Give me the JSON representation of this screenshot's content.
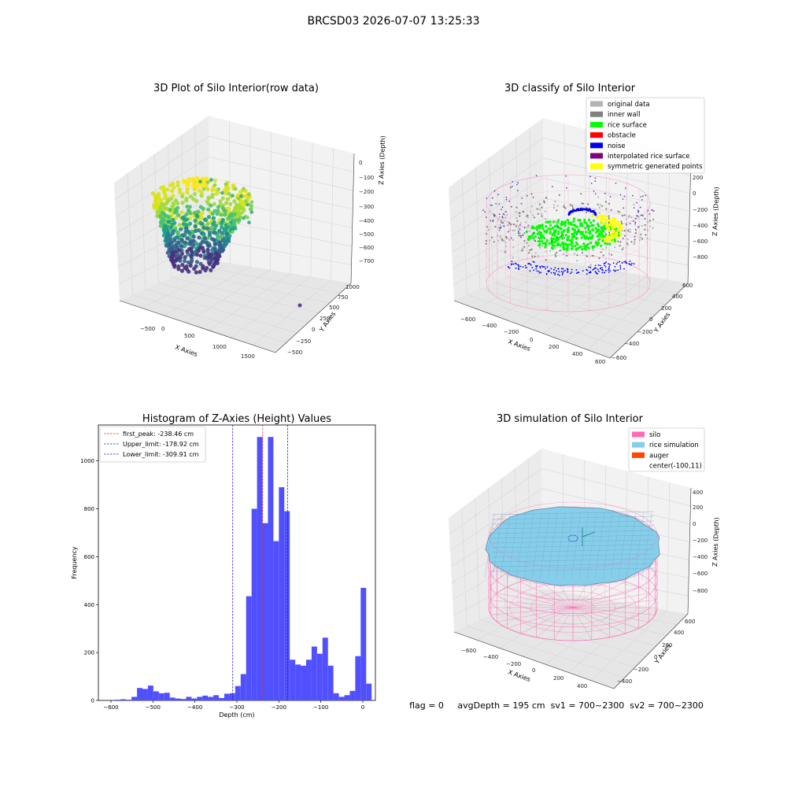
{
  "figure": {
    "title": "BRCSD03 2026-07-07 13:25:33",
    "status_line": "flag = 0     avgDepth = 195 cm  sv1 = 700~2300  sv2 = 700~2300"
  },
  "colors": {
    "histogram_bar": "#5050ff",
    "first_peak_line": "#e0303a",
    "limit_line": "#2020c0",
    "silo_pink": "#ff69b4",
    "rice_blue": "#87ceeb",
    "auger_orange": "#ff4500",
    "noise_blue": "#0000ee",
    "rice_green": "#00ff00",
    "symmetric_yellow": "#ffff00",
    "original_gray": "#b3b3b3",
    "inner_wall_gray": "#808080",
    "obstacle_red": "#ff0000",
    "interpolated_purple": "#800080"
  },
  "panels": {
    "raw": {
      "title": "3D Plot of Silo Interior(row data)",
      "xlabel": "X Axies",
      "ylabel": "Y Axies",
      "zlabel": "Z Axies (Depth)",
      "xticks": [
        "−500",
        "0",
        "500",
        "1000",
        "1500"
      ],
      "yticks": [
        "−500",
        "−250",
        "0",
        "250",
        "500",
        "750",
        "1000"
      ],
      "zticks": [
        "0",
        "−100",
        "−200",
        "−300",
        "−400",
        "−500",
        "−600",
        "−700"
      ]
    },
    "classify": {
      "title": "3D classify of Silo Interior",
      "xlabel": "X Axies",
      "ylabel": "Y Axies",
      "zlabel": "Z Axies (Depth)",
      "xticks": [
        "−600",
        "−400",
        "−200",
        "0",
        "200",
        "400",
        "600"
      ],
      "yticks": [
        "−600",
        "−400",
        "−200",
        "0",
        "200",
        "400",
        "600"
      ],
      "zticks": [
        "200",
        "0",
        "−200",
        "−400",
        "−600",
        "−800"
      ],
      "legend": [
        {
          "label": "original data",
          "color": "#b3b3b3"
        },
        {
          "label": "inner wall",
          "color": "#808080"
        },
        {
          "label": "rice surface",
          "color": "#00ff00"
        },
        {
          "label": "obstacle",
          "color": "#ff0000"
        },
        {
          "label": "noise",
          "color": "#0000ee"
        },
        {
          "label": "interpolated rice surface",
          "color": "#800080"
        },
        {
          "label": "symmetric generated points",
          "color": "#ffff00"
        }
      ]
    },
    "simulation": {
      "title": "3D simulation of Silo Interior",
      "xlabel": "X Axies",
      "ylabel": "Y Axies",
      "zlabel": "Z Axies (Depth)",
      "xticks": [
        "−600",
        "−400",
        "−200",
        "0",
        "200",
        "400"
      ],
      "yticks": [
        "−400",
        "−200",
        "0",
        "200",
        "400",
        "600"
      ],
      "zticks": [
        "400",
        "200",
        "0",
        "−200",
        "−400",
        "−600",
        "−800"
      ],
      "legend": [
        {
          "label": "silo",
          "color": "#ff69b4"
        },
        {
          "label": "rice simulation",
          "color": "#87ceeb"
        },
        {
          "label": "auger",
          "color": "#ff4500"
        },
        {
          "label": "center(-100,11)",
          "color": ""
        }
      ]
    }
  },
  "chart_data": [
    {
      "type": "bar",
      "title": "Histogram of Z-Axies (Height) Values",
      "xlabel": "Depth (cm)",
      "ylabel": "Frequency",
      "xlim": [
        -630,
        30
      ],
      "ylim": [
        0,
        1150
      ],
      "xticks": [
        -600,
        -500,
        -400,
        -300,
        -200,
        -100,
        0
      ],
      "yticks": [
        0,
        200,
        400,
        600,
        800,
        1000
      ],
      "bin_start": -590,
      "bin_width": 13,
      "values": [
        3,
        5,
        3,
        15,
        52,
        48,
        62,
        38,
        30,
        32,
        12,
        8,
        6,
        15,
        8,
        15,
        20,
        15,
        22,
        10,
        28,
        30,
        60,
        110,
        435,
        800,
        1100,
        740,
        1100,
        665,
        890,
        790,
        170,
        150,
        145,
        170,
        225,
        195,
        262,
        145,
        30,
        15,
        22,
        40,
        185,
        470,
        70
      ],
      "lines": [
        {
          "label": "first_peak: -238.46 cm",
          "x": -238.46,
          "style": "first_peak"
        },
        {
          "label": "Upper_limit: -178.92 cm",
          "x": -178.92,
          "style": "limit"
        },
        {
          "label": "Lower_limit: -309.91 cm",
          "x": -309.91,
          "style": "limit"
        }
      ],
      "legend_position": "top-left"
    }
  ]
}
